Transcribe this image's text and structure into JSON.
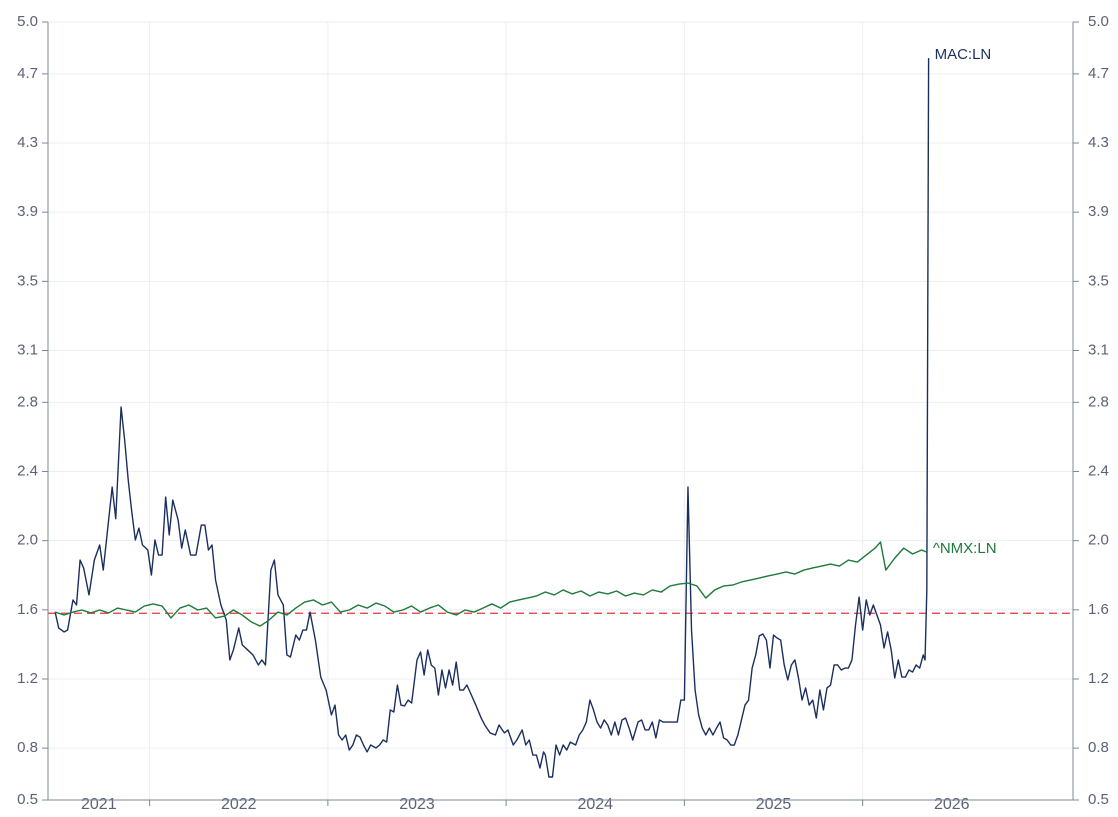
{
  "chart_data": {
    "type": "line",
    "xlim": [
      2021.43,
      2027.18
    ],
    "xticks": [
      2021,
      2022,
      2023,
      2024,
      2025,
      2026
    ],
    "ylim": [
      0.5,
      5.0
    ],
    "yticks": [
      {
        "value": 5.0,
        "label": "5.0"
      },
      4.7,
      4.3,
      3.9,
      3.5,
      3.1,
      2.8,
      2.4,
      {
        "value": 2.0,
        "label": "2.0"
      },
      1.6,
      1.2,
      0.8,
      0.5
    ],
    "grid": true,
    "right_axis": true,
    "reference_line": {
      "value": 1.58,
      "color": "#e0393e",
      "dash": true
    },
    "series": [
      {
        "name": "MAC:LN",
        "color": "#1b2f5e",
        "x": [
          2021.47,
          2021.49,
          2021.52,
          2021.54,
          2021.57,
          2021.59,
          2021.61,
          2021.63,
          2021.66,
          2021.69,
          2021.72,
          2021.74,
          2021.77,
          2021.79,
          2021.81,
          2021.84,
          2021.86,
          2021.88,
          2021.9,
          2021.92,
          2021.94,
          2021.96,
          2021.99,
          2022.01,
          2022.03,
          2022.05,
          2022.07,
          2022.09,
          2022.11,
          2022.13,
          2022.16,
          2022.18,
          2022.2,
          2022.23,
          2022.26,
          2022.29,
          2022.31,
          2022.33,
          2022.35,
          2022.37,
          2022.4,
          2022.43,
          2022.45,
          2022.47,
          2022.5,
          2022.52,
          2022.55,
          2022.58,
          2022.61,
          2022.63,
          2022.65,
          2022.68,
          2022.7,
          2022.72,
          2022.75,
          2022.77,
          2022.79,
          2022.82,
          2022.84,
          2022.86,
          2022.88,
          2022.9,
          2022.93,
          2022.96,
          2022.99,
          2023.02,
          2023.04,
          2023.06,
          2023.08,
          2023.1,
          2023.12,
          2023.14,
          2023.16,
          2023.18,
          2023.2,
          2023.22,
          2023.24,
          2023.27,
          2023.29,
          2023.31,
          2023.33,
          2023.35,
          2023.37,
          2023.39,
          2023.41,
          2023.43,
          2023.45,
          2023.47,
          2023.5,
          2023.52,
          2023.54,
          2023.56,
          2023.58,
          2023.6,
          2023.62,
          2023.64,
          2023.66,
          2023.68,
          2023.7,
          2023.72,
          2023.74,
          2023.76,
          2023.78,
          2023.8,
          2023.83,
          2023.86,
          2023.88,
          2023.91,
          2023.94,
          2023.96,
          2023.99,
          2024.01,
          2024.04,
          2024.06,
          2024.09,
          2024.11,
          2024.13,
          2024.15,
          2024.17,
          2024.19,
          2024.21,
          2024.22,
          2024.24,
          2024.26,
          2024.28,
          2024.3,
          2024.32,
          2024.34,
          2024.36,
          2024.39,
          2024.41,
          2024.43,
          2024.45,
          2024.47,
          2024.49,
          2024.51,
          2024.53,
          2024.55,
          2024.57,
          2024.59,
          2024.61,
          2024.63,
          2024.65,
          2024.67,
          2024.69,
          2024.71,
          2024.74,
          2024.76,
          2024.78,
          2024.8,
          2024.82,
          2024.84,
          2024.86,
          2024.88,
          2024.9,
          2024.92,
          2024.94,
          2024.96,
          2024.98,
          2025.0,
          2025.02,
          2025.04,
          2025.06,
          2025.08,
          2025.1,
          2025.12,
          2025.14,
          2025.16,
          2025.18,
          2025.2,
          2025.22,
          2025.24,
          2025.26,
          2025.28,
          2025.3,
          2025.32,
          2025.34,
          2025.36,
          2025.38,
          2025.4,
          2025.42,
          2025.44,
          2025.46,
          2025.48,
          2025.5,
          2025.52,
          2025.54,
          2025.56,
          2025.58,
          2025.6,
          2025.62,
          2025.64,
          2025.66,
          2025.68,
          2025.7,
          2025.72,
          2025.74,
          2025.76,
          2025.78,
          2025.8,
          2025.82,
          2025.84,
          2025.86,
          2025.88,
          2025.9,
          2025.92,
          2025.94,
          2025.96,
          2025.98,
          2026.0,
          2026.02,
          2026.04,
          2026.06,
          2026.08,
          2026.1,
          2026.12,
          2026.14,
          2026.16,
          2026.18,
          2026.2,
          2026.22,
          2026.24,
          2026.26,
          2026.28,
          2026.3,
          2026.32,
          2026.34,
          2026.35,
          2026.36,
          2026.37
        ],
        "values": [
          1.587,
          1.495,
          1.472,
          1.483,
          1.657,
          1.628,
          1.888,
          1.842,
          1.686,
          1.888,
          1.975,
          1.83,
          2.119,
          2.31,
          2.127,
          2.773,
          2.582,
          2.351,
          2.166,
          2.004,
          2.073,
          1.975,
          1.946,
          1.801,
          2.004,
          1.917,
          1.917,
          2.252,
          2.033,
          2.235,
          2.119,
          1.957,
          2.062,
          1.917,
          1.917,
          2.09,
          2.09,
          1.946,
          1.975,
          1.772,
          1.628,
          1.541,
          1.31,
          1.368,
          1.495,
          1.397,
          1.368,
          1.339,
          1.281,
          1.31,
          1.281,
          1.83,
          1.888,
          1.686,
          1.628,
          1.339,
          1.327,
          1.454,
          1.425,
          1.483,
          1.483,
          1.587,
          1.425,
          1.211,
          1.136,
          0.992,
          1.049,
          0.876,
          0.847,
          0.876,
          0.789,
          0.818,
          0.876,
          0.864,
          0.818,
          0.778,
          0.818,
          0.801,
          0.818,
          0.847,
          0.835,
          1.021,
          1.009,
          1.165,
          1.049,
          1.044,
          1.078,
          1.061,
          1.31,
          1.356,
          1.223,
          1.368,
          1.281,
          1.263,
          1.107,
          1.252,
          1.148,
          1.252,
          1.165,
          1.298,
          1.136,
          1.136,
          1.165,
          1.119,
          1.049,
          0.974,
          0.934,
          0.888,
          0.876,
          0.934,
          0.888,
          0.905,
          0.818,
          0.847,
          0.905,
          0.818,
          0.847,
          0.76,
          0.76,
          0.685,
          0.778,
          0.76,
          0.633,
          0.633,
          0.818,
          0.76,
          0.818,
          0.789,
          0.835,
          0.818,
          0.876,
          0.905,
          0.951,
          1.078,
          1.021,
          0.951,
          0.916,
          0.963,
          0.934,
          0.876,
          0.951,
          0.876,
          0.963,
          0.974,
          0.916,
          0.847,
          0.951,
          0.963,
          0.905,
          0.905,
          0.951,
          0.859,
          0.963,
          0.951,
          0.951,
          0.951,
          0.951,
          0.951,
          1.078,
          1.078,
          2.31,
          1.483,
          1.136,
          0.992,
          0.916,
          0.876,
          0.916,
          0.876,
          0.916,
          0.951,
          0.859,
          0.847,
          0.818,
          0.818,
          0.876,
          0.963,
          1.049,
          1.078,
          1.263,
          1.339,
          1.449,
          1.46,
          1.425,
          1.263,
          1.454,
          1.437,
          1.425,
          1.281,
          1.194,
          1.281,
          1.31,
          1.206,
          1.078,
          1.148,
          1.049,
          1.078,
          0.974,
          1.136,
          1.021,
          1.148,
          1.165,
          1.281,
          1.281,
          1.252,
          1.263,
          1.263,
          1.31,
          1.512,
          1.674,
          1.483,
          1.657,
          1.57,
          1.628,
          1.57,
          1.512,
          1.379,
          1.472,
          1.368,
          1.206,
          1.31,
          1.211,
          1.211,
          1.252,
          1.24,
          1.281,
          1.263,
          1.339,
          1.31,
          1.715,
          4.791
        ]
      },
      {
        "name": "^NMX:LN",
        "color": "#1f7a38",
        "x": [
          2021.47,
          2021.52,
          2021.57,
          2021.62,
          2021.67,
          2021.72,
          2021.77,
          2021.82,
          2021.87,
          2021.92,
          2021.97,
          2022.02,
          2022.07,
          2022.12,
          2022.17,
          2022.22,
          2022.27,
          2022.32,
          2022.37,
          2022.42,
          2022.47,
          2022.52,
          2022.57,
          2022.62,
          2022.67,
          2022.72,
          2022.77,
          2022.82,
          2022.87,
          2022.92,
          2022.97,
          2023.02,
          2023.07,
          2023.12,
          2023.17,
          2023.22,
          2023.27,
          2023.32,
          2023.37,
          2023.42,
          2023.47,
          2023.52,
          2023.57,
          2023.62,
          2023.67,
          2023.72,
          2023.77,
          2023.82,
          2023.87,
          2023.92,
          2023.97,
          2024.02,
          2024.07,
          2024.12,
          2024.17,
          2024.22,
          2024.27,
          2024.32,
          2024.37,
          2024.42,
          2024.47,
          2024.52,
          2024.57,
          2024.62,
          2024.67,
          2024.72,
          2024.77,
          2024.82,
          2024.87,
          2024.92,
          2024.97,
          2025.02,
          2025.07,
          2025.12,
          2025.17,
          2025.22,
          2025.27,
          2025.32,
          2025.37,
          2025.42,
          2025.47,
          2025.52,
          2025.57,
          2025.62,
          2025.67,
          2025.72,
          2025.77,
          2025.82,
          2025.87,
          2025.92,
          2025.97,
          2026.02,
          2026.07,
          2026.1,
          2026.13,
          2026.18,
          2026.23,
          2026.28,
          2026.33,
          2026.36
        ],
        "values": [
          1.587,
          1.57,
          1.587,
          1.599,
          1.582,
          1.599,
          1.582,
          1.61,
          1.599,
          1.587,
          1.622,
          1.634,
          1.622,
          1.553,
          1.61,
          1.628,
          1.599,
          1.61,
          1.553,
          1.564,
          1.599,
          1.57,
          1.53,
          1.506,
          1.541,
          1.587,
          1.57,
          1.61,
          1.645,
          1.657,
          1.628,
          1.645,
          1.587,
          1.599,
          1.628,
          1.61,
          1.639,
          1.622,
          1.587,
          1.599,
          1.622,
          1.587,
          1.61,
          1.628,
          1.587,
          1.57,
          1.599,
          1.587,
          1.61,
          1.634,
          1.61,
          1.645,
          1.657,
          1.668,
          1.68,
          1.703,
          1.686,
          1.715,
          1.692,
          1.709,
          1.68,
          1.703,
          1.692,
          1.709,
          1.68,
          1.697,
          1.686,
          1.715,
          1.703,
          1.738,
          1.749,
          1.755,
          1.738,
          1.668,
          1.715,
          1.738,
          1.743,
          1.761,
          1.772,
          1.784,
          1.796,
          1.807,
          1.819,
          1.807,
          1.83,
          1.842,
          1.853,
          1.865,
          1.853,
          1.888,
          1.876,
          1.917,
          1.957,
          1.992,
          1.83,
          1.899,
          1.957,
          1.923,
          1.946,
          1.934
        ]
      }
    ]
  }
}
